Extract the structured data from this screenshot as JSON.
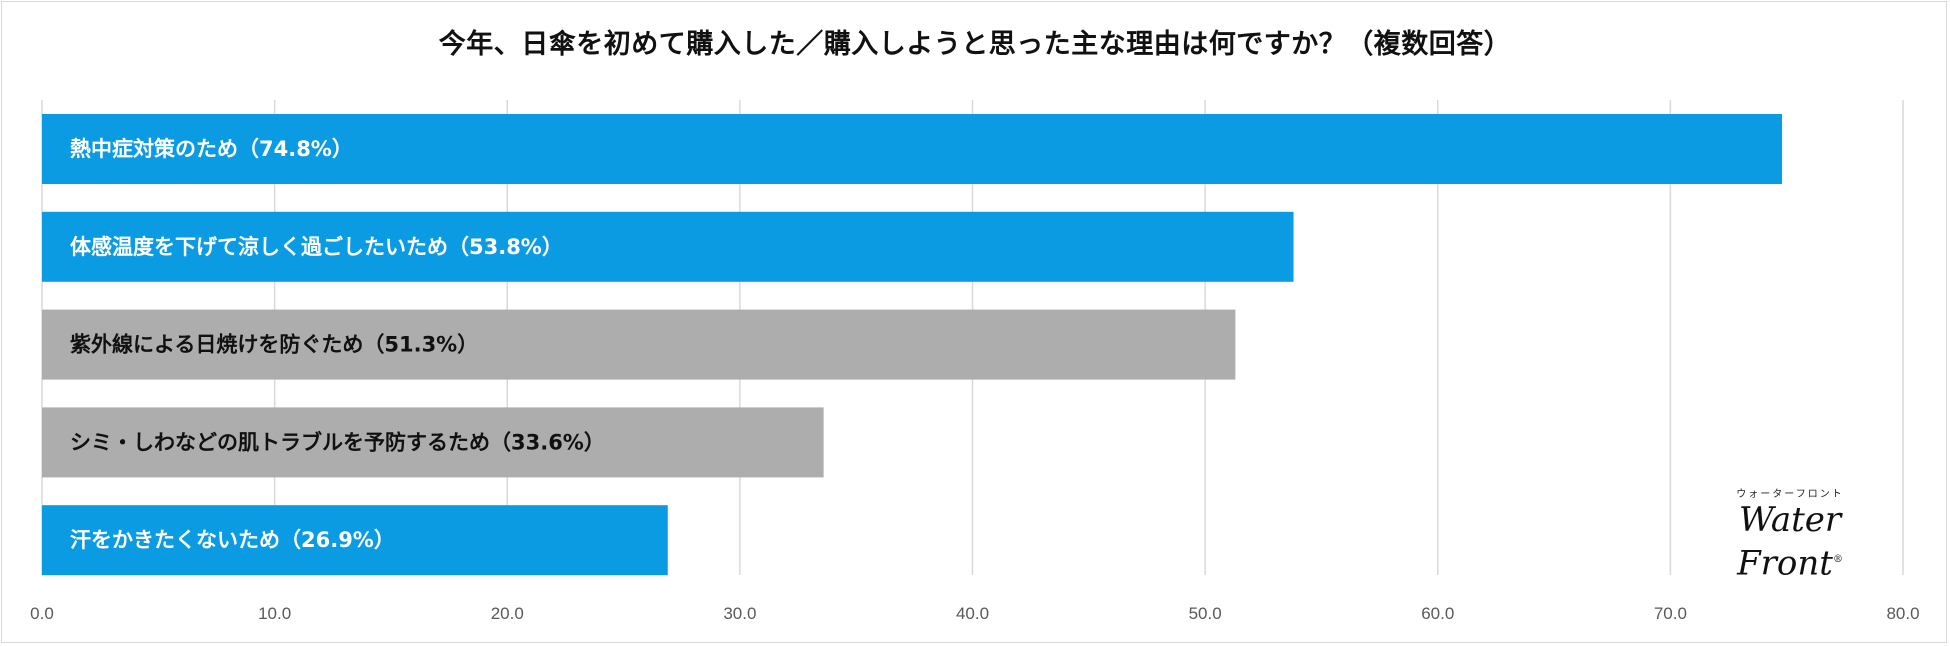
{
  "chart_data": {
    "type": "bar",
    "orientation": "horizontal",
    "title": "今年、日傘を初めて購入した／購入しようと思った主な理由は何ですか？（複数回答）",
    "categories": [
      "熱中症対策のため（74.8%）",
      "体感温度を下げて涼しく過ごしたいため（53.8%）",
      "紫外線による日焼けを防ぐため（51.3%）",
      "シミ・しわなどの肌トラブルを予防するため（33.6%）",
      "汗をかきたくないため（26.9%）"
    ],
    "values": [
      74.8,
      53.8,
      51.3,
      33.6,
      26.9
    ],
    "bar_colors": [
      "#0a9be3",
      "#0a9be3",
      "#adadad",
      "#adadad",
      "#0a9be3"
    ],
    "label_colors": [
      "#ffffff",
      "#ffffff",
      "#111111",
      "#111111",
      "#ffffff"
    ],
    "xlim": [
      0,
      80
    ],
    "xticks": [
      "0.0",
      "10.0",
      "20.0",
      "30.0",
      "40.0",
      "50.0",
      "60.0",
      "70.0",
      "80.0"
    ],
    "grid": true,
    "xlabel": "",
    "ylabel": ""
  },
  "logo": {
    "kana": "ウォーターフロント",
    "word": "Water Front",
    "mark": "®"
  }
}
